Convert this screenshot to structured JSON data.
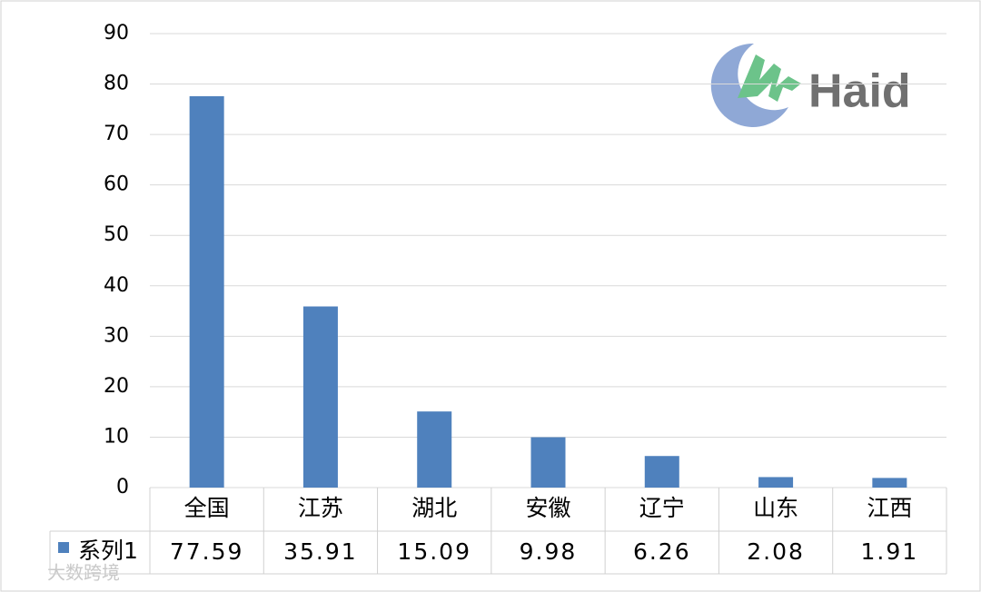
{
  "chart_data": {
    "type": "bar",
    "categories": [
      "全国",
      "江苏",
      "湖北",
      "安徽",
      "辽宁",
      "山东",
      "江西"
    ],
    "series": [
      {
        "name": "系列1",
        "color": "#4f81bd",
        "values": [
          77.59,
          35.91,
          15.09,
          9.98,
          6.26,
          2.08,
          1.91
        ]
      }
    ],
    "ylim": [
      0,
      90
    ],
    "yticks": [
      0,
      10,
      20,
      30,
      40,
      50,
      60,
      70,
      80,
      90
    ],
    "grid": true,
    "data_table": true,
    "logo_text": "Haid",
    "watermark": "大数跨境"
  }
}
